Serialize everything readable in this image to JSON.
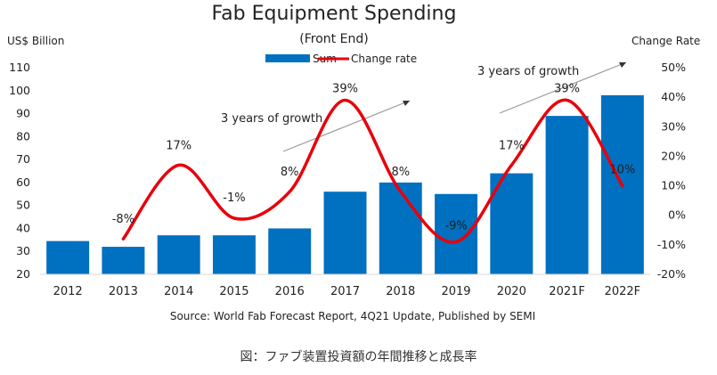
{
  "chart_data": {
    "type": "bar",
    "title": "Fab Equipment Spending",
    "subtitle": "(Front End)",
    "ylabel_left": "US$ Billion",
    "ylabel_right": "Change Rate",
    "categories": [
      "2012",
      "2013",
      "2014",
      "2015",
      "2016",
      "2017",
      "2018",
      "2019",
      "2020",
      "2021F",
      "2022F"
    ],
    "series": [
      {
        "name": "Sum",
        "type": "bar",
        "color": "#0070C0",
        "values": [
          34.5,
          32,
          37,
          37,
          40,
          56,
          60,
          55,
          64,
          89,
          98
        ]
      },
      {
        "name": "Change rate",
        "type": "line",
        "axis": "right",
        "color": "#E8000B",
        "values": [
          null,
          -8,
          17,
          -1,
          8,
          39,
          8,
          -9,
          17,
          39,
          10
        ],
        "labels": [
          "",
          "-8%",
          "17%",
          "-1%",
          "8%",
          "39%",
          "8%",
          "-9%",
          "17%",
          "39%",
          "10%"
        ]
      }
    ],
    "ylim_left": [
      20,
      110
    ],
    "yticks_left": [
      20,
      30,
      40,
      50,
      60,
      70,
      80,
      90,
      100,
      110
    ],
    "ylim_right": [
      -20,
      50
    ],
    "yticks_right": [
      "-20%",
      "-10%",
      "0%",
      "10%",
      "20%",
      "30%",
      "40%",
      "50%"
    ],
    "legend_position": "top-center",
    "grid": false,
    "annotations": [
      "3 years of growth",
      "3 years of growth"
    ],
    "source": "Source: World Fab Forecast Report, 4Q21 Update, Published by SEMI"
  },
  "caption": "図：ファブ装置投資額の年間推移と成長率"
}
